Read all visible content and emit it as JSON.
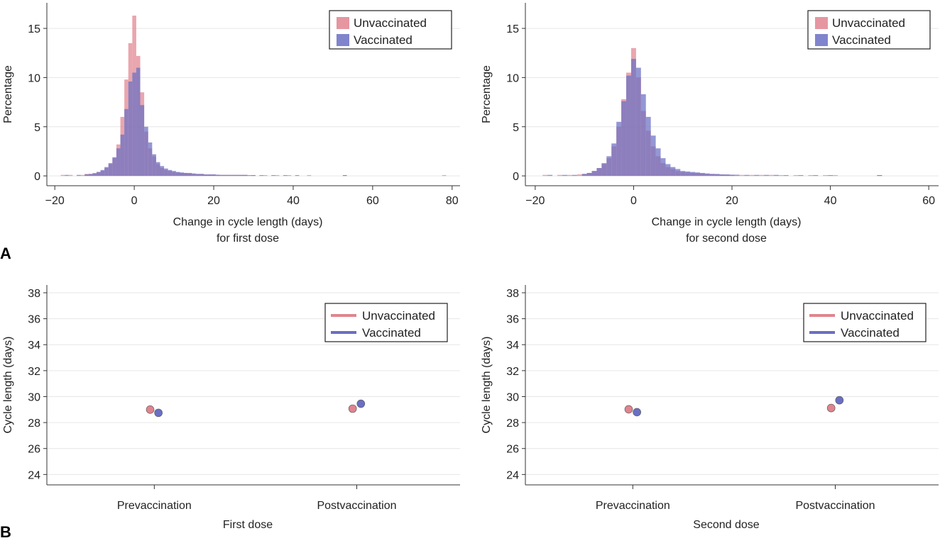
{
  "panels": {
    "a": "A",
    "b": "B"
  },
  "colors": {
    "unvaccinated": "#e0848f",
    "vaccinated": "#6a6fc4",
    "grid": "#e6e6e6",
    "axis": "#333333"
  },
  "chart_data": [
    {
      "type": "bar",
      "subtype": "overlaid-histogram",
      "panel": "A",
      "xlabel": [
        "Change in cycle length (days)",
        "for first dose"
      ],
      "ylabel": "Percentage",
      "xlim": [
        -22,
        82
      ],
      "ylim": [
        -1,
        17.6
      ],
      "xticks": [
        -20,
        0,
        20,
        40,
        60,
        80
      ],
      "xtick_labels": [
        "−20",
        "0",
        "20",
        "40",
        "60",
        "80"
      ],
      "yticks": [
        0,
        5,
        10,
        15
      ],
      "grid": true,
      "legend_position": "top-right",
      "bin_width": 1,
      "series": [
        {
          "name": "Unvaccinated",
          "color": "unvaccinated",
          "bins": [
            [
              -18,
              0.1
            ],
            [
              -16,
              0.1
            ],
            [
              -13,
              0.1
            ],
            [
              -12,
              0.2
            ],
            [
              -11,
              0.2
            ],
            [
              -10,
              0.3
            ],
            [
              -9,
              0.4
            ],
            [
              -8,
              0.5
            ],
            [
              -7,
              0.8
            ],
            [
              -6,
              1.2
            ],
            [
              -5,
              1.8
            ],
            [
              -4,
              3.2
            ],
            [
              -3,
              6.0
            ],
            [
              -2,
              9.8
            ],
            [
              -1,
              13.5
            ],
            [
              0,
              16.3
            ],
            [
              1,
              12.2
            ],
            [
              2,
              8.5
            ],
            [
              3,
              4.5
            ],
            [
              4,
              2.8
            ],
            [
              5,
              2.0
            ],
            [
              6,
              1.2
            ],
            [
              7,
              0.8
            ],
            [
              8,
              0.6
            ],
            [
              9,
              0.5
            ],
            [
              10,
              0.4
            ],
            [
              11,
              0.35
            ],
            [
              12,
              0.3
            ],
            [
              13,
              0.3
            ],
            [
              14,
              0.25
            ],
            [
              15,
              0.2
            ],
            [
              16,
              0.2
            ],
            [
              17,
              0.2
            ],
            [
              18,
              0.15
            ],
            [
              19,
              0.15
            ],
            [
              20,
              0.15
            ],
            [
              21,
              0.1
            ],
            [
              22,
              0.1
            ],
            [
              23,
              0.1
            ],
            [
              24,
              0.1
            ],
            [
              25,
              0.1
            ],
            [
              26,
              0.1
            ],
            [
              27,
              0.1
            ],
            [
              28,
              0.1
            ],
            [
              30,
              0.08
            ],
            [
              33,
              0.08
            ],
            [
              36,
              0.08
            ],
            [
              39,
              0.08
            ],
            [
              44,
              0.08
            ],
            [
              53,
              0.08
            ],
            [
              78,
              0.08
            ]
          ]
        },
        {
          "name": "Vaccinated",
          "color": "vaccinated",
          "bins": [
            [
              -17,
              0.1
            ],
            [
              -14,
              0.1
            ],
            [
              -12,
              0.15
            ],
            [
              -11,
              0.2
            ],
            [
              -10,
              0.25
            ],
            [
              -9,
              0.4
            ],
            [
              -8,
              0.6
            ],
            [
              -7,
              0.9
            ],
            [
              -6,
              1.3
            ],
            [
              -5,
              1.9
            ],
            [
              -4,
              2.8
            ],
            [
              -3,
              4.2
            ],
            [
              -2,
              6.8
            ],
            [
              -1,
              9.6
            ],
            [
              0,
              10.5
            ],
            [
              1,
              11.0
            ],
            [
              2,
              7.2
            ],
            [
              3,
              5.0
            ],
            [
              4,
              3.4
            ],
            [
              5,
              2.2
            ],
            [
              6,
              1.4
            ],
            [
              7,
              1.0
            ],
            [
              8,
              0.75
            ],
            [
              9,
              0.6
            ],
            [
              10,
              0.5
            ],
            [
              11,
              0.4
            ],
            [
              12,
              0.35
            ],
            [
              13,
              0.3
            ],
            [
              14,
              0.3
            ],
            [
              15,
              0.25
            ],
            [
              16,
              0.2
            ],
            [
              17,
              0.2
            ],
            [
              18,
              0.15
            ],
            [
              19,
              0.15
            ],
            [
              20,
              0.15
            ],
            [
              21,
              0.12
            ],
            [
              22,
              0.1
            ],
            [
              23,
              0.1
            ],
            [
              24,
              0.1
            ],
            [
              25,
              0.1
            ],
            [
              26,
              0.1
            ],
            [
              27,
              0.1
            ],
            [
              28,
              0.1
            ],
            [
              29,
              0.08
            ],
            [
              30,
              0.08
            ],
            [
              32,
              0.08
            ],
            [
              35,
              0.08
            ],
            [
              38,
              0.08
            ],
            [
              41,
              0.08
            ],
            [
              53,
              0.08
            ]
          ]
        }
      ]
    },
    {
      "type": "bar",
      "subtype": "overlaid-histogram",
      "panel": "A",
      "xlabel": [
        "Change in cycle length (days)",
        "for second dose"
      ],
      "ylabel": "Percentage",
      "xlim": [
        -22,
        62
      ],
      "ylim": [
        -1,
        17.6
      ],
      "xticks": [
        -20,
        0,
        20,
        40,
        60
      ],
      "xtick_labels": [
        "−20",
        "0",
        "20",
        "40",
        "60"
      ],
      "yticks": [
        0,
        5,
        10,
        15
      ],
      "grid": true,
      "legend_position": "top-right",
      "bin_width": 1,
      "series": [
        {
          "name": "Unvaccinated",
          "color": "unvaccinated",
          "bins": [
            [
              -18,
              0.1
            ],
            [
              -15,
              0.1
            ],
            [
              -13,
              0.1
            ],
            [
              -11,
              0.15
            ],
            [
              -10,
              0.2
            ],
            [
              -9,
              0.3
            ],
            [
              -8,
              0.5
            ],
            [
              -7,
              0.8
            ],
            [
              -6,
              1.2
            ],
            [
              -5,
              1.8
            ],
            [
              -4,
              3.0
            ],
            [
              -3,
              5.0
            ],
            [
              -2,
              7.8
            ],
            [
              -1,
              10.5
            ],
            [
              0,
              13.0
            ],
            [
              1,
              10.0
            ],
            [
              2,
              6.6
            ],
            [
              3,
              4.6
            ],
            [
              4,
              3.0
            ],
            [
              5,
              2.0
            ],
            [
              6,
              1.3
            ],
            [
              7,
              0.9
            ],
            [
              8,
              0.7
            ],
            [
              9,
              0.5
            ],
            [
              10,
              0.4
            ],
            [
              11,
              0.35
            ],
            [
              12,
              0.3
            ],
            [
              13,
              0.3
            ],
            [
              14,
              0.25
            ],
            [
              15,
              0.2
            ],
            [
              16,
              0.2
            ],
            [
              17,
              0.15
            ],
            [
              18,
              0.15
            ],
            [
              19,
              0.12
            ],
            [
              20,
              0.12
            ],
            [
              22,
              0.1
            ],
            [
              24,
              0.1
            ],
            [
              26,
              0.1
            ],
            [
              28,
              0.1
            ],
            [
              30,
              0.08
            ],
            [
              33,
              0.08
            ],
            [
              36,
              0.08
            ],
            [
              39,
              0.08
            ],
            [
              41,
              0.08
            ],
            [
              50,
              0.08
            ]
          ]
        },
        {
          "name": "Vaccinated",
          "color": "vaccinated",
          "bins": [
            [
              -17,
              0.1
            ],
            [
              -14,
              0.1
            ],
            [
              -12,
              0.1
            ],
            [
              -10,
              0.2
            ],
            [
              -9,
              0.3
            ],
            [
              -8,
              0.5
            ],
            [
              -7,
              0.8
            ],
            [
              -6,
              1.3
            ],
            [
              -5,
              2.0
            ],
            [
              -4,
              3.3
            ],
            [
              -3,
              5.5
            ],
            [
              -2,
              7.6
            ],
            [
              -1,
              10.2
            ],
            [
              0,
              11.9
            ],
            [
              1,
              11.0
            ],
            [
              2,
              8.3
            ],
            [
              3,
              6.0
            ],
            [
              4,
              4.1
            ],
            [
              5,
              2.8
            ],
            [
              6,
              1.8
            ],
            [
              7,
              1.2
            ],
            [
              8,
              0.9
            ],
            [
              9,
              0.7
            ],
            [
              10,
              0.5
            ],
            [
              11,
              0.45
            ],
            [
              12,
              0.4
            ],
            [
              13,
              0.35
            ],
            [
              14,
              0.3
            ],
            [
              15,
              0.25
            ],
            [
              16,
              0.2
            ],
            [
              17,
              0.2
            ],
            [
              18,
              0.15
            ],
            [
              19,
              0.15
            ],
            [
              20,
              0.12
            ],
            [
              21,
              0.12
            ],
            [
              23,
              0.1
            ],
            [
              25,
              0.1
            ],
            [
              27,
              0.1
            ],
            [
              29,
              0.1
            ],
            [
              31,
              0.08
            ],
            [
              34,
              0.08
            ],
            [
              37,
              0.08
            ],
            [
              40,
              0.08
            ],
            [
              50,
              0.08
            ]
          ]
        }
      ]
    },
    {
      "type": "scatter",
      "subtype": "point-with-error-bars",
      "panel": "B",
      "xlabel": [
        "First dose"
      ],
      "ylabel": "Cycle length (days)",
      "categories": [
        "Prevaccination",
        "Postvaccination"
      ],
      "ylim": [
        23.2,
        38.6
      ],
      "yticks": [
        24,
        26,
        28,
        30,
        32,
        34,
        36,
        38
      ],
      "grid": true,
      "legend_position": "top-right",
      "legend_style": "line",
      "series": [
        {
          "name": "Unvaccinated",
          "color": "unvaccinated",
          "offset": -0.05,
          "values": [
            29.0,
            29.07
          ],
          "ci_low": [
            28.9,
            28.85
          ],
          "ci_high": [
            29.1,
            29.3
          ]
        },
        {
          "name": "Vaccinated",
          "color": "vaccinated",
          "offset": 0.05,
          "values": [
            28.75,
            29.45
          ],
          "ci_low": [
            28.62,
            29.28
          ],
          "ci_high": [
            28.88,
            29.62
          ]
        }
      ]
    },
    {
      "type": "scatter",
      "subtype": "point-with-error-bars",
      "panel": "B",
      "xlabel": [
        "Second dose"
      ],
      "ylabel": "Cycle length (days)",
      "categories": [
        "Prevaccination",
        "Postvaccination"
      ],
      "ylim": [
        23.2,
        38.6
      ],
      "yticks": [
        24,
        26,
        28,
        30,
        32,
        34,
        36,
        38
      ],
      "grid": true,
      "legend_position": "top-right",
      "legend_style": "line",
      "series": [
        {
          "name": "Unvaccinated",
          "color": "unvaccinated",
          "offset": -0.05,
          "values": [
            29.02,
            29.12
          ],
          "ci_low": [
            28.92,
            28.9
          ],
          "ci_high": [
            29.12,
            29.34
          ]
        },
        {
          "name": "Vaccinated",
          "color": "vaccinated",
          "offset": 0.05,
          "values": [
            28.8,
            29.72
          ],
          "ci_low": [
            28.68,
            29.52
          ],
          "ci_high": [
            28.92,
            29.92
          ]
        }
      ]
    }
  ]
}
